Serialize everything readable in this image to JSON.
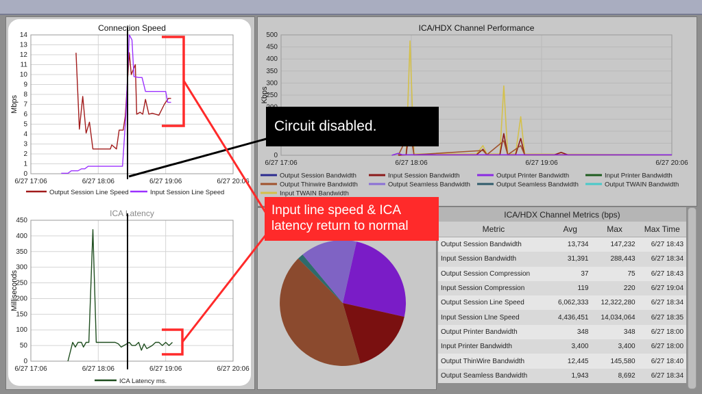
{
  "charts": {
    "speed": {
      "title": "Connection Speed",
      "ylabel": "Mbps",
      "yticks": [
        "0",
        "1",
        "2",
        "3",
        "4",
        "5",
        "6",
        "7",
        "8",
        "9",
        "10",
        "11",
        "12",
        "13",
        "14"
      ],
      "xticks": [
        "6/27 17:06",
        "6/27 18:06",
        "6/27 19:06",
        "6/27 20:06"
      ],
      "legend": [
        "Output Session Line Speed",
        "Input Session Line Speed"
      ],
      "colors": {
        "output": "#a11a1a",
        "input": "#9b30ff"
      }
    },
    "latency": {
      "title": "ICA Latency",
      "ylabel": "Milliseconds",
      "yticks": [
        "0",
        "50",
        "100",
        "150",
        "200",
        "250",
        "300",
        "350",
        "400",
        "450"
      ],
      "xticks": [
        "6/27 17:06",
        "6/27 18:06",
        "6/27 19:06",
        "6/27 20:06"
      ],
      "legend": [
        "ICA Latency ms."
      ],
      "color": "#1e4d1e"
    },
    "channel": {
      "title": "ICA/HDX Channel Performance",
      "ylabel": "Kbps",
      "yticks": [
        "0",
        "50",
        "100",
        "150",
        "200",
        "250",
        "300",
        "350",
        "400",
        "450",
        "500"
      ],
      "xticks": [
        "6/27 17:06",
        "6/27 18:06",
        "6/27 19:06",
        "6/27 20:06"
      ],
      "legend": [
        {
          "label": "Output Session Bandwidth",
          "color": "#2b2b8f"
        },
        {
          "label": "Input Session Bandwidth",
          "color": "#8b1a1a"
        },
        {
          "label": "Output Printer Bandwidth",
          "color": "#8a2be2"
        },
        {
          "label": "Input Printer Bandwidth",
          "color": "#1f5c1f"
        },
        {
          "label": "Output Thinwire Bandwidth",
          "color": "#a0522d"
        },
        {
          "label": "Output Seamless Bandwidth",
          "color": "#8a6fd6"
        },
        {
          "label": "Output Seamless Bandwidth",
          "color": "#2f5b6b"
        },
        {
          "label": "Output TWAIN Bandwidth",
          "color": "#48c9c9"
        },
        {
          "label": "Input TWAIN Bandwidth",
          "color": "#d4c04a"
        }
      ]
    }
  },
  "callouts": {
    "black": "Circuit disabled.",
    "red_line1": "Input line speed & ICA",
    "red_line2": "latency return to normal"
  },
  "metrics": {
    "title": "ICA/HDX Channel Metrics (bps)",
    "headers": [
      "Metric",
      "Avg",
      "Max",
      "Max Time"
    ],
    "rows": [
      [
        "Output Session Bandwidth",
        "13,734",
        "147,232",
        "6/27 18:43"
      ],
      [
        "Input Session Bandwidth",
        "31,391",
        "288,443",
        "6/27 18:34"
      ],
      [
        "Output Session Compression",
        "37",
        "75",
        "6/27 18:43"
      ],
      [
        "Input Session Compression",
        "119",
        "220",
        "6/27 19:04"
      ],
      [
        "Output Session Line Speed",
        "6,062,333",
        "12,322,280",
        "6/27 18:34"
      ],
      [
        "Input Session LIne Speed",
        "4,436,451",
        "14,034,064",
        "6/27 18:35"
      ],
      [
        "Output Printer Bandwidth",
        "348",
        "348",
        "6/27 18:00"
      ],
      [
        "Input Printer Bandwidth",
        "3,400",
        "3,400",
        "6/27 18:00"
      ],
      [
        "Output ThinWire Bandwidth",
        "12,445",
        "145,580",
        "6/27 18:40"
      ],
      [
        "Output Seamless Bandwidth",
        "1,943",
        "8,692",
        "6/27 18:34"
      ]
    ]
  },
  "chart_data": [
    {
      "type": "line",
      "title": "Connection Speed",
      "ylabel": "Mbps",
      "ylim": [
        0,
        14
      ],
      "xticks": [
        "6/27 17:06",
        "6/27 18:06",
        "6/27 19:06",
        "6/27 20:06"
      ],
      "series": [
        {
          "name": "Output Session Line Speed",
          "points": [
            [
              0.67,
              12.2
            ],
            [
              0.72,
              4.5
            ],
            [
              0.77,
              7.8
            ],
            [
              0.82,
              4.1
            ],
            [
              0.87,
              5.2
            ],
            [
              0.92,
              2.5
            ],
            [
              1.0,
              2.5
            ],
            [
              1.1,
              2.5
            ],
            [
              1.18,
              2.5
            ],
            [
              1.2,
              2.9
            ],
            [
              1.27,
              2.5
            ],
            [
              1.31,
              4.4
            ],
            [
              1.37,
              4.4
            ],
            [
              1.4,
              5.8
            ],
            [
              1.46,
              12.2
            ],
            [
              1.49,
              10
            ],
            [
              1.55,
              11
            ],
            [
              1.57,
              6.0
            ],
            [
              1.62,
              6.2
            ],
            [
              1.66,
              6.0
            ],
            [
              1.7,
              7.5
            ],
            [
              1.75,
              6.0
            ],
            [
              1.8,
              6.1
            ],
            [
              1.9,
              5.9
            ],
            [
              1.98,
              7.0
            ],
            [
              2.04,
              7.6
            ],
            [
              2.08,
              7.6
            ]
          ]
        },
        {
          "name": "Input Session Line Speed",
          "points": [
            [
              0.45,
              0.05
            ],
            [
              0.55,
              0.05
            ],
            [
              0.6,
              0.3
            ],
            [
              0.7,
              0.3
            ],
            [
              0.75,
              0.5
            ],
            [
              0.8,
              0.5
            ],
            [
              0.85,
              0.75
            ],
            [
              1.0,
              0.75
            ],
            [
              1.2,
              0.75
            ],
            [
              1.36,
              0.75
            ],
            [
              1.41,
              6.0
            ],
            [
              1.46,
              14.0
            ],
            [
              1.5,
              13.5
            ],
            [
              1.53,
              9.8
            ],
            [
              1.6,
              9.7
            ],
            [
              1.65,
              9.7
            ],
            [
              1.7,
              8.3
            ],
            [
              1.85,
              8.3
            ],
            [
              2.0,
              8.3
            ],
            [
              2.03,
              7.2
            ],
            [
              2.08,
              7.2
            ]
          ]
        }
      ]
    },
    {
      "type": "line",
      "title": "ICA Latency",
      "ylabel": "Milliseconds",
      "ylim": [
        0,
        450
      ],
      "xticks": [
        "6/27 17:06",
        "6/27 18:06",
        "6/27 19:06",
        "6/27 20:06"
      ],
      "series": [
        {
          "name": "ICA Latency ms.",
          "points": [
            [
              0.55,
              0
            ],
            [
              0.62,
              60
            ],
            [
              0.66,
              45
            ],
            [
              0.7,
              60
            ],
            [
              0.75,
              60
            ],
            [
              0.78,
              45
            ],
            [
              0.82,
              60
            ],
            [
              0.86,
              60
            ],
            [
              0.92,
              420
            ],
            [
              0.97,
              60
            ],
            [
              1.05,
              60
            ],
            [
              1.15,
              60
            ],
            [
              1.25,
              60
            ],
            [
              1.3,
              55
            ],
            [
              1.34,
              45
            ],
            [
              1.38,
              50
            ],
            [
              1.42,
              55
            ],
            [
              1.46,
              60
            ],
            [
              1.5,
              50
            ],
            [
              1.55,
              50
            ],
            [
              1.6,
              60
            ],
            [
              1.64,
              35
            ],
            [
              1.68,
              55
            ],
            [
              1.72,
              40
            ],
            [
              1.76,
              45
            ],
            [
              1.8,
              50
            ],
            [
              1.85,
              60
            ],
            [
              1.9,
              60
            ],
            [
              1.95,
              50
            ],
            [
              2.0,
              60
            ],
            [
              2.05,
              50
            ],
            [
              2.1,
              60
            ]
          ]
        }
      ]
    },
    {
      "type": "line",
      "title": "ICA/HDX Channel Performance",
      "ylabel": "Kbps",
      "ylim": [
        0,
        500
      ],
      "xticks": [
        "6/27 17:06",
        "6/27 18:06",
        "6/27 19:06",
        "6/27 20:06"
      ],
      "series": [
        {
          "name": "Input TWAIN Bandwidth",
          "points": [
            [
              0.9,
              0
            ],
            [
              0.96,
              2
            ],
            [
              0.99,
              475
            ],
            [
              1.02,
              5
            ],
            [
              1.5,
              5
            ],
            [
              1.55,
              40
            ],
            [
              1.58,
              5
            ],
            [
              1.68,
              5
            ],
            [
              1.71,
              288
            ],
            [
              1.74,
              5
            ],
            [
              1.8,
              5
            ],
            [
              1.84,
              160
            ],
            [
              1.87,
              5
            ],
            [
              3.0,
              2
            ]
          ]
        },
        {
          "name": "Input Session Bandwidth",
          "points": [
            [
              0.9,
              0
            ],
            [
              0.96,
              2
            ],
            [
              0.99,
              135
            ],
            [
              1.02,
              2
            ],
            [
              1.5,
              2
            ],
            [
              1.55,
              25
            ],
            [
              1.58,
              2
            ],
            [
              1.68,
              2
            ],
            [
              1.71,
              90
            ],
            [
              1.74,
              2
            ],
            [
              1.8,
              2
            ],
            [
              1.84,
              70
            ],
            [
              1.87,
              2
            ],
            [
              2.1,
              2
            ],
            [
              2.15,
              12
            ],
            [
              2.2,
              2
            ],
            [
              3.0,
              2
            ]
          ]
        },
        {
          "name": "Output Thinwire Bandwidth",
          "points": [
            [
              0.9,
              0
            ],
            [
              0.99,
              100
            ],
            [
              1.02,
              2
            ],
            [
              1.55,
              20
            ],
            [
              1.58,
              2
            ],
            [
              1.71,
              60
            ],
            [
              1.74,
              2
            ],
            [
              1.84,
              40
            ],
            [
              1.87,
              2
            ],
            [
              3.0,
              2
            ]
          ]
        },
        {
          "name": "Output Printer Bandwidth",
          "points": [
            [
              0.85,
              0
            ],
            [
              0.9,
              8
            ],
            [
              0.93,
              2
            ],
            [
              3.0,
              2
            ]
          ]
        }
      ]
    },
    {
      "type": "pie",
      "slices": [
        {
          "label": "Output Printer Bandwidth",
          "value": 25,
          "color": "#7a1cc7"
        },
        {
          "label": "Input Session Bandwidth",
          "value": 17,
          "color": "#7a1010"
        },
        {
          "label": "Output Thinwire Bandwidth",
          "value": 42,
          "color": "#8b4a2e"
        },
        {
          "label": "Output Seamless Bandwidth",
          "value": 1.5,
          "color": "#2e6b6b"
        },
        {
          "label": "Output Seamless Bandwidth",
          "value": 14.5,
          "color": "#7f63c4"
        }
      ]
    }
  ]
}
